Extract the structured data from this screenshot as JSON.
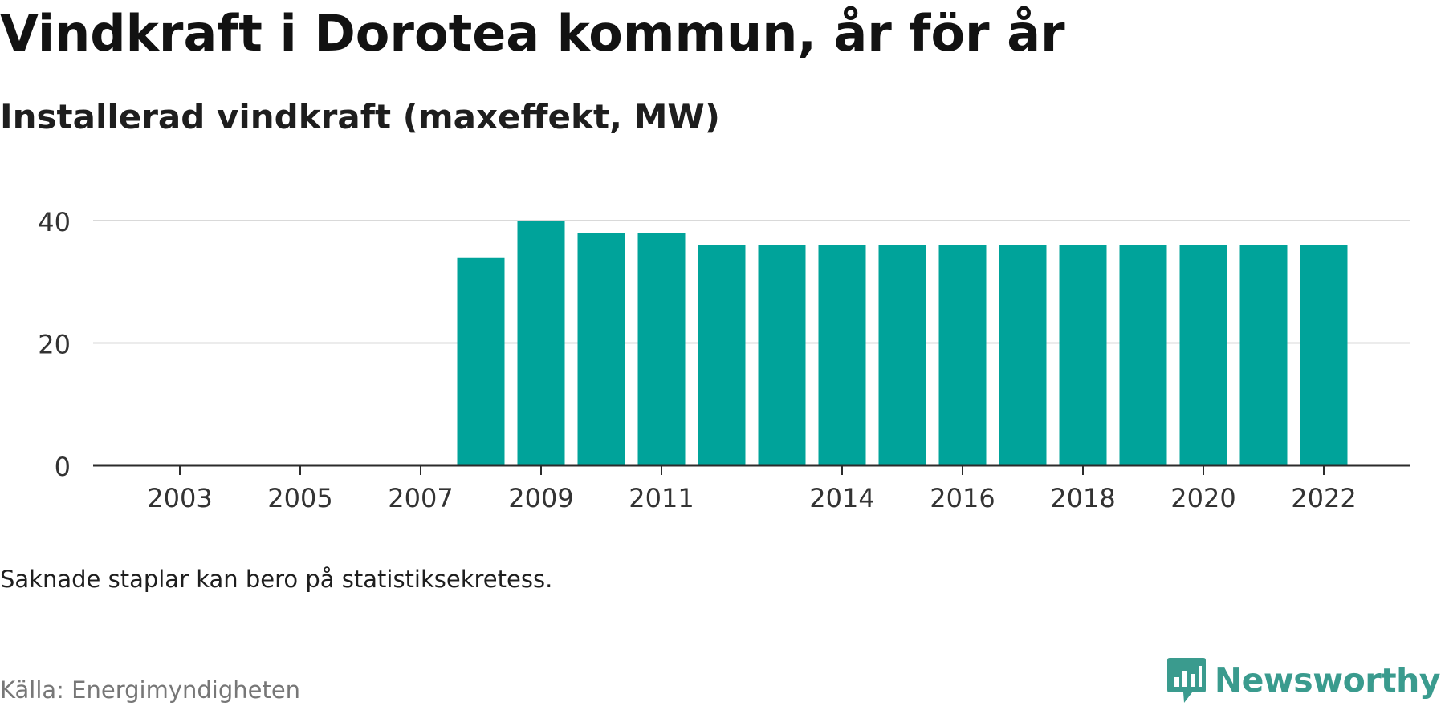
{
  "title": "Vindkraft i Dorotea kommun, år för år",
  "subtitle": "Installerad vindkraft (maxeffekt, MW)",
  "footnote": "Saknade staplar kan bero på statistiksekretess.",
  "source": "Källa: Energimyndigheten",
  "brand": {
    "name": "Newsworthy",
    "icon": "newsworthy-logo-icon",
    "color": "#3a9b8e"
  },
  "colors": {
    "bar": "#00a39a",
    "grid": "#d9d9d9",
    "axis": "#2b2b2b",
    "tick_text": "#333333"
  },
  "chart_data": {
    "type": "bar",
    "categories": [
      "2002",
      "2003",
      "2004",
      "2005",
      "2006",
      "2007",
      "2008",
      "2009",
      "2010",
      "2011",
      "2012",
      "2013",
      "2014",
      "2015",
      "2016",
      "2017",
      "2018",
      "2019",
      "2020",
      "2021",
      "2022"
    ],
    "values": [
      null,
      null,
      null,
      null,
      null,
      null,
      34,
      40,
      38,
      38,
      36,
      36,
      36,
      36,
      36,
      36,
      36,
      36,
      36,
      36,
      36
    ],
    "x_tick_labels": [
      "2003",
      "2005",
      "2007",
      "2009",
      "2011",
      "2014",
      "2016",
      "2018",
      "2020",
      "2022"
    ],
    "y_ticks": [
      0,
      20,
      40
    ],
    "ylim": [
      0,
      40
    ],
    "xlabel": "",
    "ylabel": "",
    "grid": true,
    "legend": "none"
  }
}
